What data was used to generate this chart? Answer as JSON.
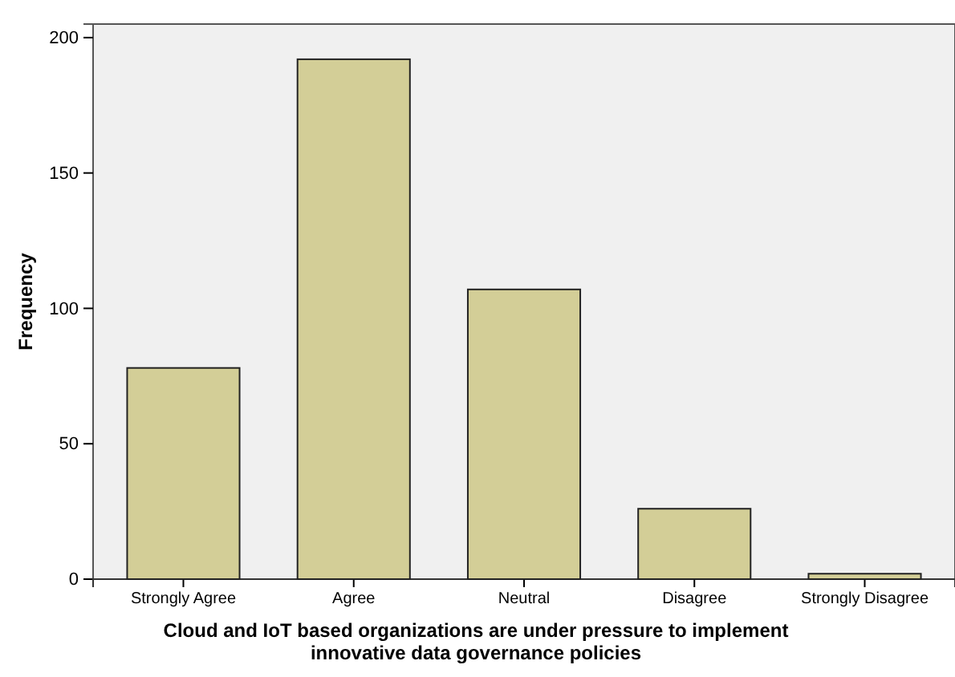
{
  "chart_data": {
    "type": "bar",
    "categories": [
      "Strongly Agree",
      "Agree",
      "Neutral",
      "Disagree",
      "Strongly Disagree"
    ],
    "values": [
      78,
      192,
      107,
      26,
      2
    ],
    "color": "#d3ce97",
    "ylim": [
      0,
      205
    ],
    "yticks": [
      0,
      50,
      100,
      150,
      200
    ],
    "xlabel": "Cloud and IoT based organizations are under pressure to implement\ninnovative data governance policies",
    "ylabel": "Frequency",
    "grid": false
  }
}
